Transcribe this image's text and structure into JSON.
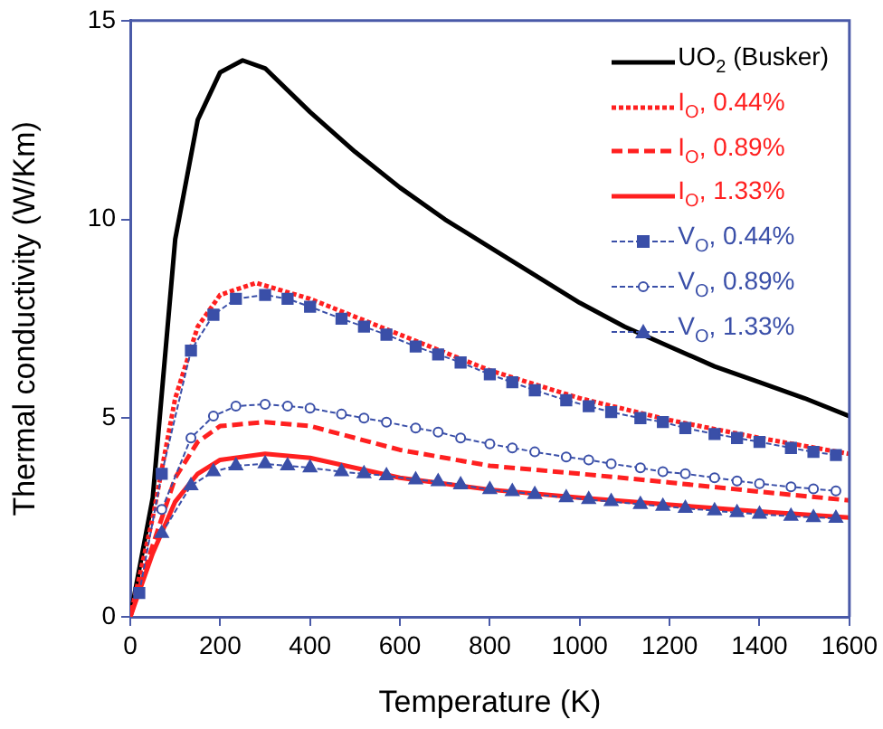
{
  "chart_data": {
    "type": "line",
    "xlabel": "Temperature (K)",
    "ylabel": "Thermal conductivity (W/Km)",
    "xlim": [
      0,
      1600
    ],
    "xticks": [
      0,
      200,
      400,
      600,
      800,
      1000,
      1200,
      1400,
      1600
    ],
    "ylim": [
      0,
      15
    ],
    "yticks": [
      0,
      5,
      10,
      15
    ],
    "grid": false,
    "legend": "top right",
    "series": [
      {
        "name": "UO$_{2}$ (Busker)",
        "color": "#000000",
        "line_style": "solid",
        "marker": "none",
        "x": [
          0,
          50,
          100,
          150,
          200,
          250,
          300,
          400,
          500,
          600,
          700,
          800,
          900,
          1000,
          1100,
          1200,
          1300,
          1400,
          1500,
          1600
        ],
        "values": [
          0,
          3,
          9.5,
          12.5,
          13.7,
          14,
          13.8,
          12.7,
          11.7,
          10.8,
          10,
          9.3,
          8.6,
          7.9,
          7.3,
          6.8,
          6.3,
          5.9,
          5.5,
          5.05
        ]
      },
      {
        "name": "I$_{O}$, 0.44%",
        "color": "#ff2020",
        "line_style": "dotted",
        "marker": "none",
        "x": [
          0,
          50,
          100,
          150,
          200,
          280,
          400,
          600,
          800,
          1000,
          1200,
          1400,
          1600
        ],
        "values": [
          0,
          2.5,
          5.5,
          7.3,
          8.1,
          8.4,
          8,
          7.1,
          6.2,
          5.5,
          4.95,
          4.5,
          4.1
        ]
      },
      {
        "name": "I$_{O}$, 0.89%",
        "color": "#ff2020",
        "line_style": "dashed",
        "marker": "none",
        "x": [
          0,
          50,
          100,
          150,
          200,
          300,
          400,
          600,
          800,
          1000,
          1200,
          1400,
          1600
        ],
        "values": [
          0,
          1.8,
          3.5,
          4.4,
          4.8,
          4.9,
          4.8,
          4.2,
          3.8,
          3.6,
          3.38,
          3.15,
          2.93
        ]
      },
      {
        "name": "I$_{O}$, 1.33%",
        "color": "#ff2020",
        "line_style": "solid",
        "marker": "none",
        "x": [
          0,
          50,
          100,
          150,
          200,
          300,
          400,
          600,
          800,
          1000,
          1200,
          1400,
          1600
        ],
        "values": [
          0,
          1.6,
          2.9,
          3.6,
          3.95,
          4.1,
          4,
          3.5,
          3.2,
          3,
          2.82,
          2.65,
          2.5
        ]
      },
      {
        "name": "V$_{O}$, 0.44%",
        "color": "#3a4fa8",
        "line_style": "dashed",
        "marker": "square",
        "x": [
          20,
          70,
          135,
          185,
          235,
          300,
          350,
          400,
          470,
          520,
          570,
          635,
          685,
          735,
          800,
          850,
          900,
          970,
          1020,
          1070,
          1135,
          1185,
          1235,
          1300,
          1350,
          1400,
          1470,
          1520,
          1570
        ],
        "values": [
          0.6,
          3.6,
          6.7,
          7.6,
          8,
          8.1,
          8,
          7.8,
          7.5,
          7.3,
          7.1,
          6.8,
          6.6,
          6.4,
          6.1,
          5.9,
          5.7,
          5.45,
          5.3,
          5.15,
          5,
          4.9,
          4.75,
          4.6,
          4.5,
          4.4,
          4.25,
          4.15,
          4.07
        ]
      },
      {
        "name": "V$_{O}$, 0.89%",
        "color": "#3a4fa8",
        "line_style": "dashed",
        "marker": "circle",
        "x": [
          70,
          135,
          185,
          235,
          300,
          350,
          400,
          470,
          520,
          570,
          635,
          685,
          735,
          800,
          850,
          900,
          970,
          1020,
          1070,
          1135,
          1185,
          1235,
          1300,
          1350,
          1400,
          1470,
          1520,
          1570
        ],
        "values": [
          2.7,
          4.5,
          5.05,
          5.3,
          5.35,
          5.3,
          5.25,
          5.1,
          5,
          4.9,
          4.75,
          4.65,
          4.5,
          4.35,
          4.25,
          4.15,
          4.02,
          3.95,
          3.85,
          3.75,
          3.65,
          3.6,
          3.5,
          3.42,
          3.35,
          3.27,
          3.22,
          3.17
        ]
      },
      {
        "name": "V$_{O}$, 1.33%",
        "color": "#3a4fa8",
        "line_style": "dashed",
        "marker": "triangle",
        "x": [
          70,
          135,
          185,
          235,
          300,
          350,
          400,
          470,
          520,
          570,
          635,
          685,
          735,
          800,
          850,
          900,
          970,
          1020,
          1070,
          1135,
          1185,
          1235,
          1300,
          1350,
          1400,
          1470,
          1520,
          1570
        ],
        "values": [
          2.1,
          3.3,
          3.65,
          3.8,
          3.85,
          3.8,
          3.75,
          3.65,
          3.6,
          3.55,
          3.45,
          3.4,
          3.32,
          3.2,
          3.15,
          3.08,
          3,
          2.95,
          2.9,
          2.83,
          2.78,
          2.73,
          2.67,
          2.62,
          2.58,
          2.53,
          2.5,
          2.48
        ]
      }
    ]
  }
}
